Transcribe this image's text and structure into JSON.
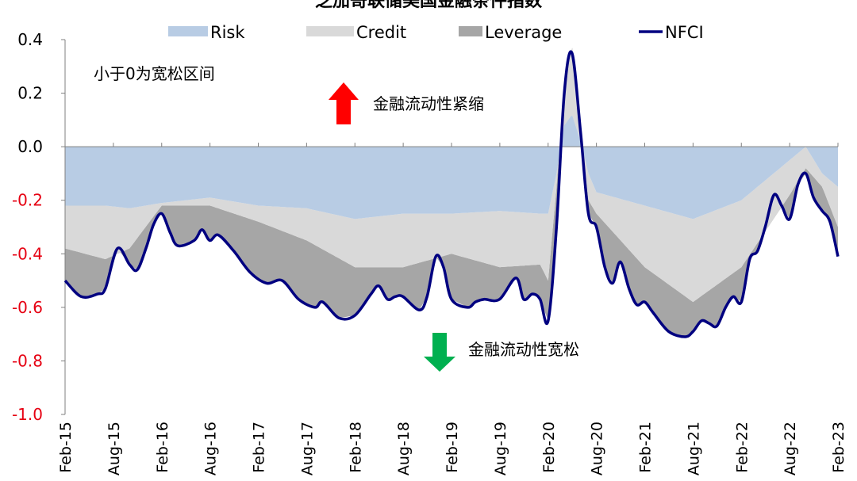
{
  "chart_data": {
    "type": "area",
    "title": "芝加哥联储美国金融条件指数",
    "ylim": [
      -1.0,
      0.4
    ],
    "yticks": [
      {
        "value": 0.4,
        "label": "0.4",
        "color": "#000000"
      },
      {
        "value": 0.2,
        "label": "0.2",
        "color": "#000000"
      },
      {
        "value": 0.0,
        "label": "0.0",
        "color": "#000000"
      },
      {
        "value": -0.2,
        "label": "-0.2",
        "color": "#e60012"
      },
      {
        "value": -0.4,
        "label": "-0.4",
        "color": "#e60012"
      },
      {
        "value": -0.6,
        "label": "-0.6",
        "color": "#e60012"
      },
      {
        "value": -0.8,
        "label": "-0.8",
        "color": "#e60012"
      },
      {
        "value": -1.0,
        "label": "-1.0",
        "color": "#e60012"
      }
    ],
    "xlim": [
      2015.083,
      2023.083
    ],
    "xticks": [
      {
        "x": 2015.083,
        "label": "Feb-15"
      },
      {
        "x": 2015.583,
        "label": "Aug-15"
      },
      {
        "x": 2016.083,
        "label": "Feb-16"
      },
      {
        "x": 2016.583,
        "label": "Aug-16"
      },
      {
        "x": 2017.083,
        "label": "Feb-17"
      },
      {
        "x": 2017.583,
        "label": "Aug-17"
      },
      {
        "x": 2018.083,
        "label": "Feb-18"
      },
      {
        "x": 2018.583,
        "label": "Aug-18"
      },
      {
        "x": 2019.083,
        "label": "Feb-19"
      },
      {
        "x": 2019.583,
        "label": "Aug-19"
      },
      {
        "x": 2020.083,
        "label": "Feb-20"
      },
      {
        "x": 2020.583,
        "label": "Aug-20"
      },
      {
        "x": 2021.083,
        "label": "Feb-21"
      },
      {
        "x": 2021.583,
        "label": "Aug-21"
      },
      {
        "x": 2022.083,
        "label": "Feb-22"
      },
      {
        "x": 2022.583,
        "label": "Aug-22"
      },
      {
        "x": 2023.083,
        "label": "Feb-23"
      }
    ],
    "legend": [
      {
        "name": "Risk",
        "kind": "area",
        "color": "#b8cce4"
      },
      {
        "name": "Credit",
        "kind": "area",
        "color": "#d9d9d9"
      },
      {
        "name": "Leverage",
        "kind": "area",
        "color": "#a6a6a6"
      },
      {
        "name": "NFCI",
        "kind": "line",
        "color": "#000080"
      }
    ],
    "legend_position": "top",
    "series": [
      {
        "name": "NFCI",
        "points": [
          [
            2015.083,
            -0.5
          ],
          [
            2015.25,
            -0.56
          ],
          [
            2015.42,
            -0.55
          ],
          [
            2015.5,
            -0.53
          ],
          [
            2015.625,
            -0.38
          ],
          [
            2015.75,
            -0.44
          ],
          [
            2015.83,
            -0.46
          ],
          [
            2015.92,
            -0.38
          ],
          [
            2016.0,
            -0.29
          ],
          [
            2016.083,
            -0.25
          ],
          [
            2016.17,
            -0.32
          ],
          [
            2016.25,
            -0.37
          ],
          [
            2016.42,
            -0.35
          ],
          [
            2016.5,
            -0.31
          ],
          [
            2016.58,
            -0.35
          ],
          [
            2016.67,
            -0.33
          ],
          [
            2016.83,
            -0.39
          ],
          [
            2017.0,
            -0.47
          ],
          [
            2017.17,
            -0.51
          ],
          [
            2017.33,
            -0.5
          ],
          [
            2017.5,
            -0.57
          ],
          [
            2017.67,
            -0.6
          ],
          [
            2017.75,
            -0.58
          ],
          [
            2017.92,
            -0.64
          ],
          [
            2018.083,
            -0.63
          ],
          [
            2018.25,
            -0.55
          ],
          [
            2018.33,
            -0.52
          ],
          [
            2018.42,
            -0.57
          ],
          [
            2018.5,
            -0.56
          ],
          [
            2018.58,
            -0.56
          ],
          [
            2018.75,
            -0.61
          ],
          [
            2018.83,
            -0.56
          ],
          [
            2018.92,
            -0.41
          ],
          [
            2019.0,
            -0.45
          ],
          [
            2019.083,
            -0.57
          ],
          [
            2019.25,
            -0.6
          ],
          [
            2019.33,
            -0.58
          ],
          [
            2019.42,
            -0.57
          ],
          [
            2019.58,
            -0.57
          ],
          [
            2019.75,
            -0.49
          ],
          [
            2019.83,
            -0.57
          ],
          [
            2019.92,
            -0.55
          ],
          [
            2020.0,
            -0.57
          ],
          [
            2020.083,
            -0.65
          ],
          [
            2020.17,
            -0.3
          ],
          [
            2020.25,
            0.2
          ],
          [
            2020.33,
            0.35
          ],
          [
            2020.42,
            0.05
          ],
          [
            2020.5,
            -0.25
          ],
          [
            2020.583,
            -0.3
          ],
          [
            2020.67,
            -0.45
          ],
          [
            2020.75,
            -0.51
          ],
          [
            2020.83,
            -0.43
          ],
          [
            2020.92,
            -0.53
          ],
          [
            2021.0,
            -0.59
          ],
          [
            2021.083,
            -0.58
          ],
          [
            2021.17,
            -0.62
          ],
          [
            2021.33,
            -0.69
          ],
          [
            2021.5,
            -0.71
          ],
          [
            2021.583,
            -0.69
          ],
          [
            2021.67,
            -0.65
          ],
          [
            2021.75,
            -0.66
          ],
          [
            2021.83,
            -0.67
          ],
          [
            2021.92,
            -0.6
          ],
          [
            2022.0,
            -0.56
          ],
          [
            2022.083,
            -0.58
          ],
          [
            2022.17,
            -0.42
          ],
          [
            2022.25,
            -0.39
          ],
          [
            2022.33,
            -0.3
          ],
          [
            2022.42,
            -0.18
          ],
          [
            2022.5,
            -0.22
          ],
          [
            2022.583,
            -0.27
          ],
          [
            2022.67,
            -0.14
          ],
          [
            2022.75,
            -0.1
          ],
          [
            2022.83,
            -0.19
          ],
          [
            2022.92,
            -0.24
          ],
          [
            2023.0,
            -0.28
          ],
          [
            2023.083,
            -0.41
          ]
        ]
      },
      {
        "name": "Risk",
        "points": [
          [
            2015.083,
            -0.22
          ],
          [
            2015.5,
            -0.22
          ],
          [
            2015.75,
            -0.23
          ],
          [
            2016.083,
            -0.21
          ],
          [
            2016.583,
            -0.19
          ],
          [
            2017.083,
            -0.22
          ],
          [
            2017.583,
            -0.23
          ],
          [
            2018.083,
            -0.27
          ],
          [
            2018.583,
            -0.25
          ],
          [
            2019.083,
            -0.25
          ],
          [
            2019.583,
            -0.24
          ],
          [
            2020.0,
            -0.25
          ],
          [
            2020.083,
            -0.25
          ],
          [
            2020.17,
            -0.1
          ],
          [
            2020.25,
            0.08
          ],
          [
            2020.33,
            0.12
          ],
          [
            2020.42,
            0.02
          ],
          [
            2020.5,
            -0.1
          ],
          [
            2020.583,
            -0.17
          ],
          [
            2021.083,
            -0.22
          ],
          [
            2021.583,
            -0.27
          ],
          [
            2022.083,
            -0.2
          ],
          [
            2022.583,
            -0.05
          ],
          [
            2022.75,
            0.0
          ],
          [
            2022.92,
            -0.1
          ],
          [
            2023.083,
            -0.15
          ]
        ]
      },
      {
        "name": "Credit",
        "points": [
          [
            2015.083,
            -0.38
          ],
          [
            2015.5,
            -0.42
          ],
          [
            2015.75,
            -0.38
          ],
          [
            2016.083,
            -0.22
          ],
          [
            2016.583,
            -0.22
          ],
          [
            2017.083,
            -0.28
          ],
          [
            2017.583,
            -0.35
          ],
          [
            2018.083,
            -0.45
          ],
          [
            2018.583,
            -0.45
          ],
          [
            2019.083,
            -0.4
          ],
          [
            2019.583,
            -0.45
          ],
          [
            2020.0,
            -0.44
          ],
          [
            2020.083,
            -0.5
          ],
          [
            2020.17,
            -0.15
          ],
          [
            2020.25,
            0.22
          ],
          [
            2020.33,
            0.38
          ],
          [
            2020.42,
            0.05
          ],
          [
            2020.5,
            -0.2
          ],
          [
            2020.583,
            -0.25
          ],
          [
            2021.083,
            -0.45
          ],
          [
            2021.583,
            -0.58
          ],
          [
            2022.083,
            -0.45
          ],
          [
            2022.583,
            -0.18
          ],
          [
            2022.75,
            -0.08
          ],
          [
            2022.92,
            -0.15
          ],
          [
            2023.083,
            -0.3
          ]
        ]
      }
    ],
    "annotations": {
      "loose_zone": "小于0为宽松区间",
      "tightening": "金融流动性紧缩",
      "easing": "金融流动性宽松"
    }
  }
}
